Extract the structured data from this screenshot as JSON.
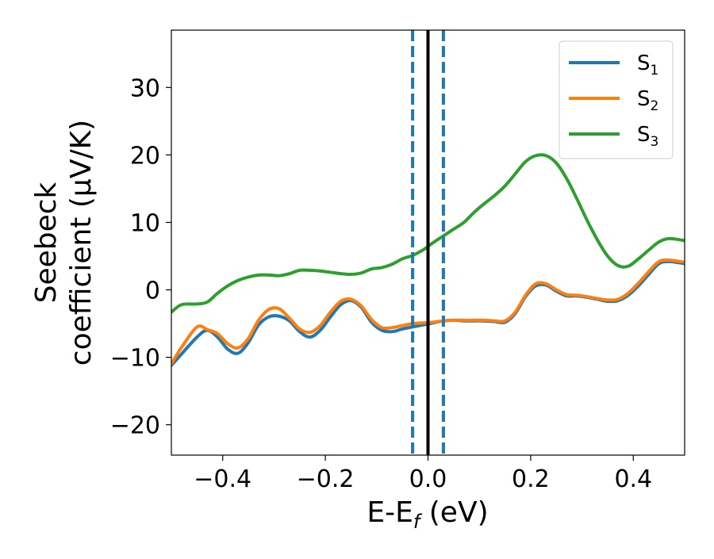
{
  "chart_data": {
    "type": "line",
    "title": "",
    "xlabel": {
      "main": "E-E",
      "sub": "f",
      "suffix": " (eV)"
    },
    "ylabel": {
      "line1": "Seebeck",
      "line2": "coefficient  (μV/K)"
    },
    "xlim": [
      -0.5,
      0.5
    ],
    "ylim": [
      -24.5,
      38.5
    ],
    "x_ticks": [
      -0.4,
      -0.2,
      0.0,
      0.2,
      0.4
    ],
    "x_tick_labels": [
      "−0.4",
      "−0.2",
      "0.0",
      "0.2",
      "0.4"
    ],
    "y_ticks": [
      -20,
      -10,
      0,
      10,
      20,
      30
    ],
    "y_tick_labels": [
      "−20",
      "−10",
      "0",
      "10",
      "20",
      "30"
    ],
    "grid": false,
    "legend_position": "top-right",
    "vertical_lines": [
      {
        "x": -0.03,
        "style": "dashed",
        "color": "#1f77b4"
      },
      {
        "x": 0.0,
        "style": "solid",
        "color": "#000000"
      },
      {
        "x": 0.03,
        "style": "dashed",
        "color": "#1f77b4"
      }
    ],
    "series": [
      {
        "name": "S",
        "sub": "1",
        "color": "#1f77b4",
        "x": [
          -0.5,
          -0.48,
          -0.45,
          -0.43,
          -0.41,
          -0.39,
          -0.37,
          -0.35,
          -0.33,
          -0.31,
          -0.29,
          -0.27,
          -0.25,
          -0.23,
          -0.21,
          -0.19,
          -0.17,
          -0.15,
          -0.13,
          -0.11,
          -0.09,
          -0.07,
          -0.05,
          -0.03,
          -0.01,
          0.01,
          0.03,
          0.05,
          0.07,
          0.09,
          0.11,
          0.13,
          0.15,
          0.17,
          0.19,
          0.21,
          0.23,
          0.25,
          0.27,
          0.29,
          0.31,
          0.33,
          0.35,
          0.37,
          0.39,
          0.41,
          0.43,
          0.45,
          0.47,
          0.5
        ],
        "y": [
          -11.2,
          -9.5,
          -7.0,
          -6.0,
          -7.0,
          -8.8,
          -9.4,
          -7.8,
          -5.2,
          -4.0,
          -3.9,
          -4.6,
          -6.2,
          -7.0,
          -6.0,
          -4.0,
          -2.2,
          -1.6,
          -2.6,
          -4.8,
          -6.0,
          -6.2,
          -5.8,
          -5.5,
          -5.2,
          -4.9,
          -4.6,
          -4.5,
          -4.6,
          -4.6,
          -4.6,
          -4.7,
          -4.8,
          -3.5,
          -1.0,
          0.6,
          0.7,
          -0.2,
          -0.9,
          -0.9,
          -1.1,
          -1.4,
          -1.7,
          -1.6,
          -0.8,
          0.6,
          2.3,
          3.9,
          4.2,
          3.9
        ]
      },
      {
        "name": "S",
        "sub": "2",
        "color": "#ff7f0e",
        "x": [
          -0.5,
          -0.48,
          -0.45,
          -0.43,
          -0.41,
          -0.39,
          -0.37,
          -0.35,
          -0.33,
          -0.31,
          -0.29,
          -0.27,
          -0.25,
          -0.23,
          -0.21,
          -0.19,
          -0.17,
          -0.15,
          -0.13,
          -0.11,
          -0.09,
          -0.07,
          -0.05,
          -0.03,
          -0.01,
          0.01,
          0.03,
          0.05,
          0.07,
          0.09,
          0.11,
          0.13,
          0.15,
          0.17,
          0.19,
          0.21,
          0.23,
          0.25,
          0.27,
          0.29,
          0.31,
          0.33,
          0.35,
          0.37,
          0.39,
          0.41,
          0.43,
          0.45,
          0.47,
          0.5
        ],
        "y": [
          -11.0,
          -8.5,
          -5.5,
          -5.9,
          -6.5,
          -8.0,
          -8.6,
          -7.2,
          -4.5,
          -2.9,
          -2.8,
          -4.2,
          -5.8,
          -6.3,
          -5.3,
          -3.3,
          -1.7,
          -1.4,
          -2.4,
          -4.4,
          -5.6,
          -5.6,
          -5.3,
          -5.0,
          -4.9,
          -4.8,
          -4.6,
          -4.5,
          -4.5,
          -4.5,
          -4.5,
          -4.6,
          -4.6,
          -3.3,
          -0.8,
          0.9,
          0.9,
          0.0,
          -0.7,
          -0.8,
          -1.0,
          -1.3,
          -1.5,
          -1.4,
          -0.5,
          1.0,
          2.7,
          4.2,
          4.4,
          4.1
        ]
      },
      {
        "name": "S",
        "sub": "3",
        "color": "#2ca02c",
        "x": [
          -0.5,
          -0.48,
          -0.45,
          -0.43,
          -0.41,
          -0.39,
          -0.37,
          -0.35,
          -0.33,
          -0.31,
          -0.29,
          -0.27,
          -0.25,
          -0.23,
          -0.21,
          -0.19,
          -0.17,
          -0.15,
          -0.13,
          -0.11,
          -0.09,
          -0.07,
          -0.05,
          -0.03,
          -0.01,
          0.01,
          0.03,
          0.05,
          0.07,
          0.09,
          0.11,
          0.13,
          0.15,
          0.17,
          0.19,
          0.21,
          0.23,
          0.25,
          0.27,
          0.29,
          0.31,
          0.33,
          0.35,
          0.37,
          0.39,
          0.41,
          0.43,
          0.45,
          0.47,
          0.5
        ],
        "y": [
          -3.3,
          -2.2,
          -2.1,
          -1.8,
          -0.5,
          0.6,
          1.4,
          1.9,
          2.2,
          2.2,
          2.1,
          2.4,
          2.9,
          2.9,
          2.8,
          2.6,
          2.4,
          2.3,
          2.5,
          3.1,
          3.3,
          3.8,
          4.6,
          5.1,
          5.9,
          7.0,
          8.0,
          9.0,
          10.0,
          11.5,
          12.8,
          14.0,
          15.4,
          17.2,
          19.0,
          19.9,
          19.9,
          18.8,
          16.5,
          13.5,
          10.3,
          7.4,
          5.0,
          3.6,
          3.5,
          4.6,
          5.9,
          7.1,
          7.6,
          7.3
        ]
      }
    ]
  }
}
